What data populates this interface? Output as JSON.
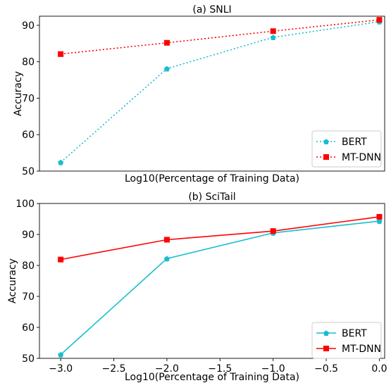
{
  "chart_data": [
    {
      "type": "line",
      "title": "(a) SNLI",
      "xlabel": "Log10(Percentage of Training Data)",
      "ylabel": "Accuracy",
      "x": [
        -3.0,
        -2.0,
        -1.0,
        0.0
      ],
      "xlim": [
        -3.2,
        0.05
      ],
      "ylim": [
        50,
        92.5
      ],
      "xticks": [],
      "yticks": [
        50,
        60,
        70,
        80,
        90
      ],
      "ytick_labels": [
        "50",
        "60",
        "70",
        "80",
        "90"
      ],
      "legend": "lower-right",
      "line_style": "dotted",
      "series": [
        {
          "name": "BERT",
          "values": [
            52.4,
            78.1,
            86.7,
            91.0
          ],
          "color": "#17becf",
          "marker": "pentagon"
        },
        {
          "name": "MT-DNN",
          "values": [
            82.1,
            85.2,
            88.4,
            91.5
          ],
          "color": "#ff0000",
          "marker": "square"
        }
      ]
    },
    {
      "type": "line",
      "title": "(b) SciTail",
      "xlabel": "Log10(Percentage of Training Data)",
      "ylabel": "Accuracy",
      "x": [
        -3.0,
        -2.0,
        -1.0,
        0.0
      ],
      "xlim": [
        -3.2,
        0.05
      ],
      "ylim": [
        50,
        100
      ],
      "xticks": [
        -3.0,
        -2.5,
        -2.0,
        -1.5,
        -1.0,
        -0.5,
        0.0
      ],
      "xtick_labels": [
        "−3.0",
        "−2.5",
        "−2.0",
        "−1.5",
        "−1.0",
        "−0.5",
        "0.0"
      ],
      "yticks": [
        50,
        60,
        70,
        80,
        90,
        100
      ],
      "ytick_labels": [
        "50",
        "60",
        "70",
        "80",
        "90",
        "100"
      ],
      "legend": "lower-right",
      "line_style": "solid",
      "series": [
        {
          "name": "BERT",
          "values": [
            51.2,
            82.2,
            90.5,
            94.3
          ],
          "color": "#17becf",
          "marker": "pentagon"
        },
        {
          "name": "MT-DNN",
          "values": [
            81.9,
            88.3,
            91.1,
            95.7
          ],
          "color": "#ff0000",
          "marker": "square"
        }
      ]
    }
  ]
}
